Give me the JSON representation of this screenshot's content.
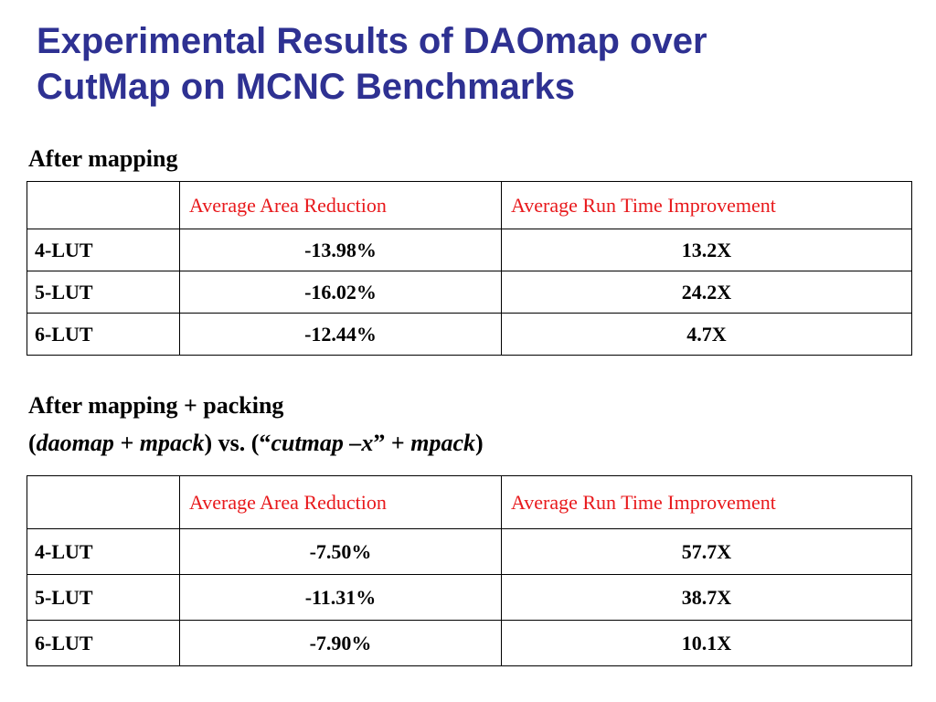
{
  "slide": {
    "title_line1": "Experimental Results of DAOmap over",
    "title_line2": "CutMap on MCNC Benchmarks"
  },
  "section1": {
    "heading": "After mapping",
    "table": {
      "columns": [
        "",
        "Average Area Reduction",
        "Average Run Time Improvement"
      ],
      "rows": [
        {
          "lut": "4-LUT",
          "area": "-13.98%",
          "runtime": "13.2X"
        },
        {
          "lut": "5-LUT",
          "area": "-16.02%",
          "runtime": "24.2X"
        },
        {
          "lut": "6-LUT",
          "area": "-12.44%",
          "runtime": "4.7X"
        }
      ]
    }
  },
  "section2": {
    "heading": "After mapping + packing",
    "subheading": {
      "open_paren": "(",
      "daomap": "daomap",
      "plus1": " + ",
      "mpack1": "mpack",
      "vs": ") vs. (“",
      "cutmap": "cutmap –x",
      "quote_plus": "” + ",
      "mpack2": "mpack",
      "close_paren": ")"
    },
    "table": {
      "columns": [
        "",
        "Average Area Reduction",
        "Average Run Time Improvement"
      ],
      "rows": [
        {
          "lut": "4-LUT",
          "area": "-7.50%",
          "runtime": "57.7X"
        },
        {
          "lut": "5-LUT",
          "area": "-11.31%",
          "runtime": "38.7X"
        },
        {
          "lut": "6-LUT",
          "area": "-7.90%",
          "runtime": "10.1X"
        }
      ]
    }
  },
  "colors": {
    "title": "#2e3192",
    "table_header": "#e8191c",
    "text": "#000000"
  }
}
